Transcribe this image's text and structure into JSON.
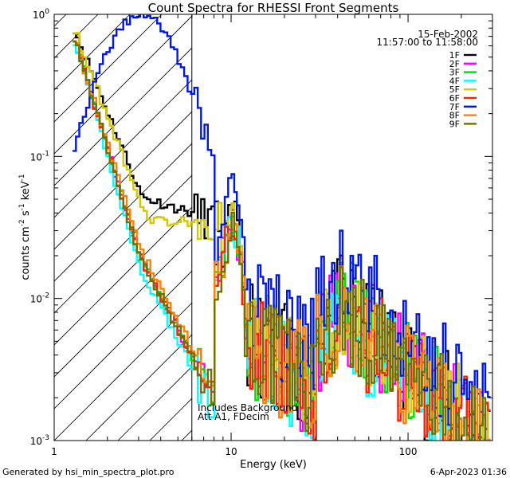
{
  "chart_data": {
    "type": "line",
    "title": "Count Spectra for RHESSI Front Segments",
    "xlabel": "Energy (keV)",
    "ylabel_main": "counts cm",
    "ylabel_exp1": "-2",
    "ylabel_mid": " s",
    "ylabel_exp2": "-1",
    "ylabel_end": " keV",
    "ylabel_exp3": "-1",
    "xscale": "log",
    "yscale": "log",
    "xlim": [
      1,
      300
    ],
    "ylim": [
      0.001,
      1
    ],
    "xticks": [
      {
        "value": 1,
        "label": "1"
      },
      {
        "value": 10,
        "label": "10"
      },
      {
        "value": 100,
        "label": "100"
      }
    ],
    "yticks": [
      {
        "value": 0.001,
        "base": "10",
        "exp": "-3"
      },
      {
        "value": 0.01,
        "base": "10",
        "exp": "-2"
      },
      {
        "value": 0.1,
        "base": "10",
        "exp": "-1"
      },
      {
        "value": 1,
        "base": "10",
        "exp": "0"
      }
    ],
    "hatched_region": [
      1,
      6
    ],
    "vertical_line": 6,
    "legend_position": "top-right",
    "date": "15-Feb-2002",
    "time_range": "11:57:00 to 11:58:00",
    "annotation_line1": "Includes Background",
    "annotation_line2": "Att A1, FDecim",
    "series": [
      {
        "name": "1F",
        "color": "#000000",
        "shape": 1.0,
        "lowExp": 1.0,
        "seed": 11
      },
      {
        "name": "2F",
        "color": "#ff00ff",
        "shape": 0.9,
        "lowExp": 1.35,
        "seed": 23
      },
      {
        "name": "3F",
        "color": "#00dd00",
        "shape": 0.9,
        "lowExp": 1.35,
        "seed": 37
      },
      {
        "name": "4F",
        "color": "#00ffff",
        "shape": 0.85,
        "lowExp": 1.4,
        "seed": 41
      },
      {
        "name": "5F",
        "color": "#d4c800",
        "shape": 1.0,
        "lowExp": 1.05,
        "seed": 53
      },
      {
        "name": "6F",
        "color": "#ff2000",
        "shape": 0.9,
        "lowExp": 1.35,
        "seed": 67
      },
      {
        "name": "7F",
        "color": "#0018e0",
        "shape": 1.6,
        "lowExp": 0.5,
        "seed": 79
      },
      {
        "name": "8F",
        "color": "#ff8000",
        "shape": 0.9,
        "lowExp": 1.3,
        "seed": 83
      },
      {
        "name": "9F",
        "color": "#707000",
        "shape": 0.9,
        "lowExp": 1.35,
        "seed": 97
      }
    ]
  },
  "footer": {
    "left": "Generated by hsi_min_spectra_plot.pro",
    "right": "6-Apr-2023 01:36"
  }
}
